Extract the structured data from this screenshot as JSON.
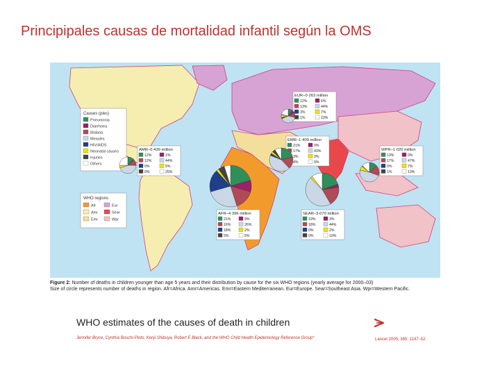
{
  "slide": {
    "title": "Principipales causas de mortalidad infantil según la OMS"
  },
  "colors": {
    "ocean": "#bfe3f2",
    "border": "#d23f7c",
    "AFR": "#f39a2d",
    "AMR": "#f6eeb0",
    "EMR": "#f3df9b",
    "EUR": "#d7a3d5",
    "SEAR": "#e8484a",
    "WPR": "#f1c2c8",
    "pneumonia": "#2f8f5a",
    "diarrhoea": "#9c1f6a",
    "malaria": "#b04a57",
    "measles": "#c9d7e6",
    "hiv": "#1f3f8a",
    "neonatal": "#f7e100",
    "injuries": "#444444",
    "others": "#ffffff"
  },
  "causes_legend": {
    "title": "Causes (ples)",
    "items": [
      "Pneumonia",
      "Diarrhoea",
      "Malaria",
      "Measles",
      "HIV/AIDS",
      "Neonatal causes",
      "Injuries",
      "Others"
    ]
  },
  "regions_legend": {
    "title": "WHO regions",
    "items": [
      "Afr",
      "Eur",
      "Amr",
      "Sear",
      "Emr",
      "Wpr"
    ]
  },
  "regions": [
    {
      "key": "EUR",
      "label": "EUR–0·263 million",
      "cells": [
        "12%",
        "6%",
        "13%",
        "44%",
        "3%",
        "7%",
        "1%",
        "23%"
      ]
    },
    {
      "key": "AMR",
      "label": "AMR–0·439 million",
      "cells": [
        "12%",
        "1%",
        "12%",
        "44%",
        "0%",
        "5%",
        "0%",
        "25%"
      ]
    },
    {
      "key": "EMR",
      "label": "EMR–1·409 million",
      "cells": [
        "21%",
        "0%",
        "17%",
        "43%",
        "3%",
        "3%",
        "4%",
        "9%"
      ]
    },
    {
      "key": "WPR",
      "label": "WPR–1·020 million",
      "cells": [
        "13%",
        "0%",
        "17%",
        "47%",
        "0%",
        "7%",
        "1%",
        "13%"
      ]
    },
    {
      "key": "AFR",
      "label": "AFR–4·396 million",
      "cells": [
        "21%",
        "9%",
        "16%",
        "26%",
        "18%",
        "2%",
        "5%",
        "5%"
      ]
    },
    {
      "key": "SEAR",
      "label": "SEAR–3·070 million",
      "cells": [
        "19%",
        "3%",
        "18%",
        "44%",
        "0%",
        "2%",
        "0%",
        "10%"
      ]
    }
  ],
  "caption": {
    "figure": "Figure 2:",
    "line1": " Number of deaths in children younger than age 5 years and their distribution by cause for the six WHO regions (yearly average for 2000–03)",
    "line2": "Size of circle represents number of deaths in region. Afr=Africa. Amr=Americas. Emr=Eastern Mediterranean. Eur=Europe. Sear=Southeast Asia. Wpr=Western Pacific."
  },
  "article": {
    "title": "WHO estimates of the causes of death in children",
    "authors": "Jennifer Bryce, Cynthia Boschi-Pinto, Kenji Shibuya, Robert E Black, and the WHO Child Health Epidemiology Reference Group*",
    "citation": "Lancet 2005; 365: 1147–52"
  }
}
